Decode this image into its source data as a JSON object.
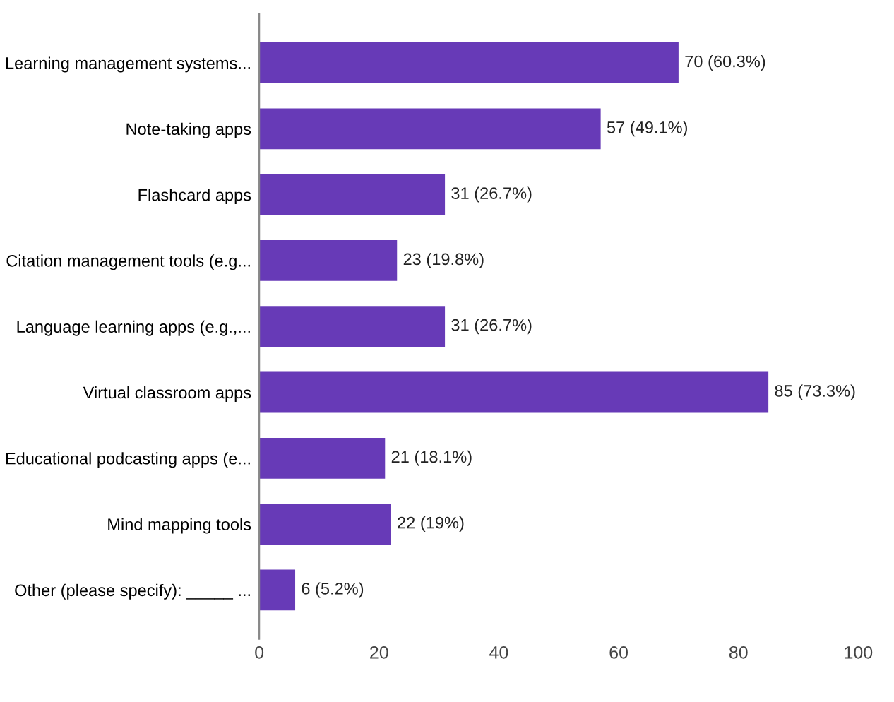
{
  "chart_data": {
    "type": "bar",
    "orientation": "horizontal",
    "categories": [
      "Learning management systems...",
      "Note-taking apps",
      "Flashcard apps",
      "Citation management tools (e.g...",
      "Language learning apps (e.g.,...",
      "Virtual classroom apps",
      "Educational podcasting apps (e...",
      "Mind mapping tools",
      "Other (please specify): _____ ..."
    ],
    "values": [
      70,
      57,
      31,
      23,
      31,
      85,
      21,
      22,
      6
    ],
    "value_labels": [
      "70 (60.3%)",
      "57 (49.1%)",
      "31 (26.7%)",
      "23 (19.8%)",
      "31 (26.7%)",
      "85 (73.3%)",
      "21 (18.1%)",
      "22 (19%)",
      "6 (5.2%)"
    ],
    "color": "#673ab7",
    "xlim": [
      0,
      100
    ],
    "xticks": [
      0,
      20,
      40,
      60,
      80,
      100
    ],
    "grid": false,
    "legend": false
  }
}
